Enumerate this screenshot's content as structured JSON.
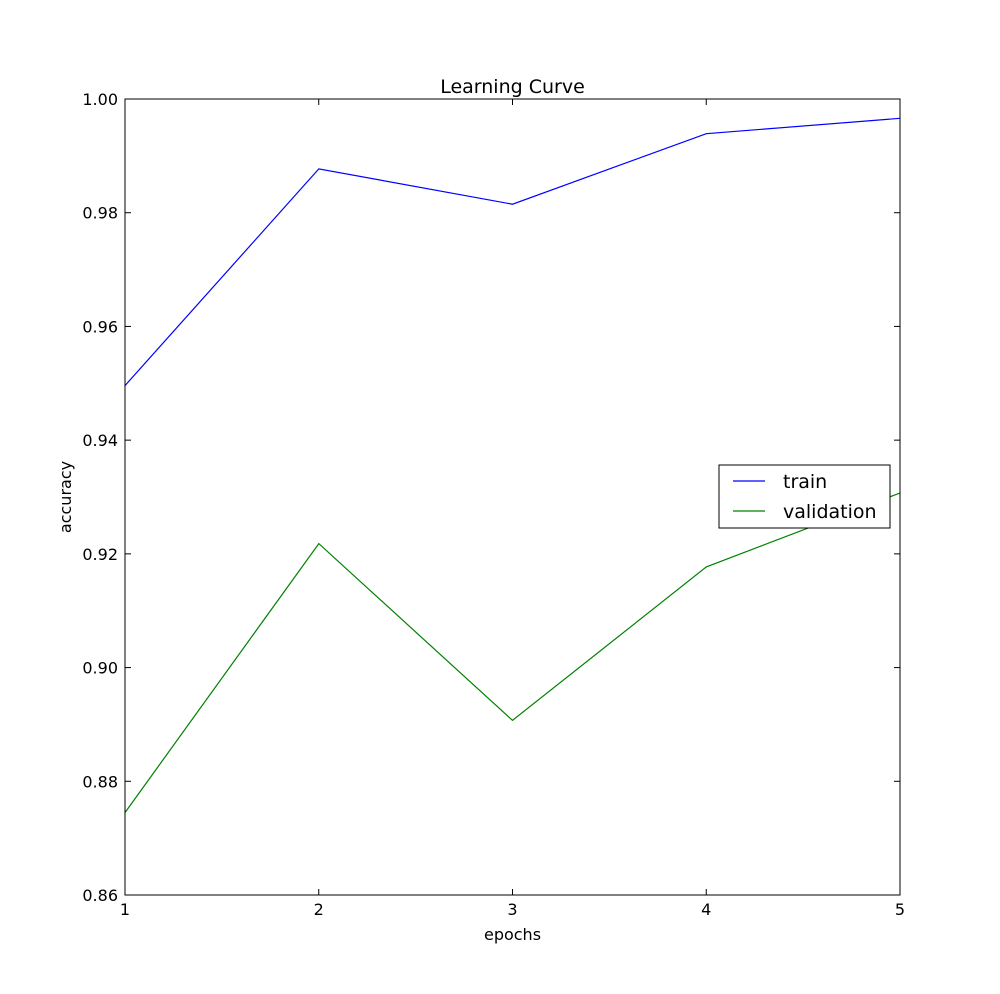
{
  "chart_data": {
    "type": "line",
    "title": "Learning Curve",
    "xlabel": "epochs",
    "ylabel": "accuracy",
    "x": [
      1,
      2,
      3,
      4,
      5
    ],
    "xlim": [
      1,
      5
    ],
    "ylim": [
      0.86,
      1.0
    ],
    "xticks": [
      1,
      2,
      3,
      4,
      5
    ],
    "xtick_labels": [
      "1",
      "2",
      "3",
      "4",
      "5"
    ],
    "yticks": [
      0.86,
      0.88,
      0.9,
      0.92,
      0.94,
      0.96,
      0.98,
      1.0
    ],
    "ytick_labels": [
      "0.86",
      "0.88",
      "0.90",
      "0.92",
      "0.94",
      "0.96",
      "0.98",
      "1.00"
    ],
    "grid": false,
    "legend_position": "center-right",
    "series": [
      {
        "name": "train",
        "color": "#0000ff",
        "values": [
          0.9496,
          0.9877,
          0.9815,
          0.9939,
          0.9966
        ]
      },
      {
        "name": "validation",
        "color": "#008000",
        "values": [
          0.8745,
          0.9218,
          0.8907,
          0.9177,
          0.9307
        ]
      }
    ]
  }
}
